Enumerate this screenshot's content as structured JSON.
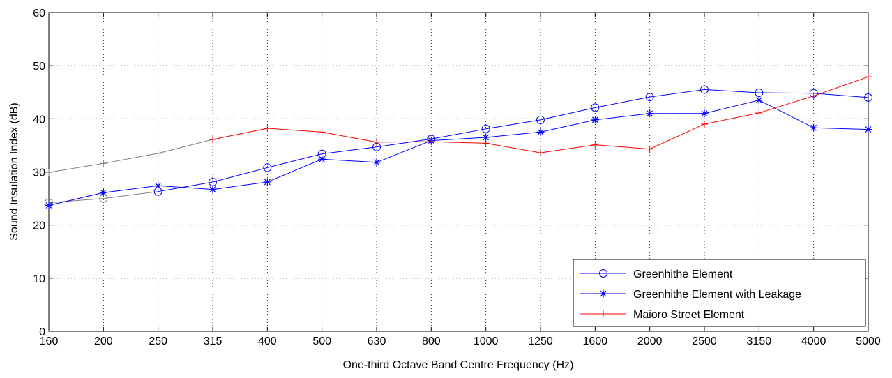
{
  "chart_data": {
    "type": "line",
    "xlabel": "One-third Octave Band Centre Frequency (Hz)",
    "ylabel": "Sound Insulation Index (dB)",
    "categories": [
      "160",
      "200",
      "250",
      "315",
      "400",
      "500",
      "630",
      "800",
      "1000",
      "1250",
      "1600",
      "2000",
      "2500",
      "3150",
      "4000",
      "5000"
    ],
    "ylim": [
      0,
      60
    ],
    "yticks": [
      "0",
      "10",
      "20",
      "30",
      "40",
      "50",
      "60"
    ],
    "grid": true,
    "legend_position": "bottom-right",
    "series": [
      {
        "name": "Greenhithe Element",
        "marker": "circle",
        "color": "#0000ff",
        "values": [
          24.2,
          25.0,
          26.3,
          28.1,
          30.8,
          33.4,
          34.7,
          36.2,
          38.1,
          39.8,
          42.1,
          44.1,
          45.5,
          44.9,
          44.8,
          44.0
        ]
      },
      {
        "name": "Greenhithe Element with Leakage",
        "marker": "star",
        "color": "#0000ff",
        "values": [
          23.7,
          26.1,
          27.4,
          26.7,
          28.1,
          32.4,
          31.8,
          35.9,
          36.5,
          37.5,
          39.8,
          41.0,
          41.0,
          43.5,
          38.3,
          38.0
        ]
      },
      {
        "name": "Maioro Street Element",
        "marker": "plus",
        "color": "#ff0000",
        "values": [
          29.9,
          31.6,
          33.5,
          36.1,
          38.2,
          37.5,
          35.6,
          35.7,
          35.4,
          33.6,
          35.1,
          34.3,
          39.0,
          41.1,
          44.3,
          47.9
        ]
      }
    ],
    "grey_segments": {
      "color": "#808080",
      "description_series_index": 2,
      "maioro_grey_until_index": 3,
      "greenhithe_grey_until_index": 3
    }
  }
}
